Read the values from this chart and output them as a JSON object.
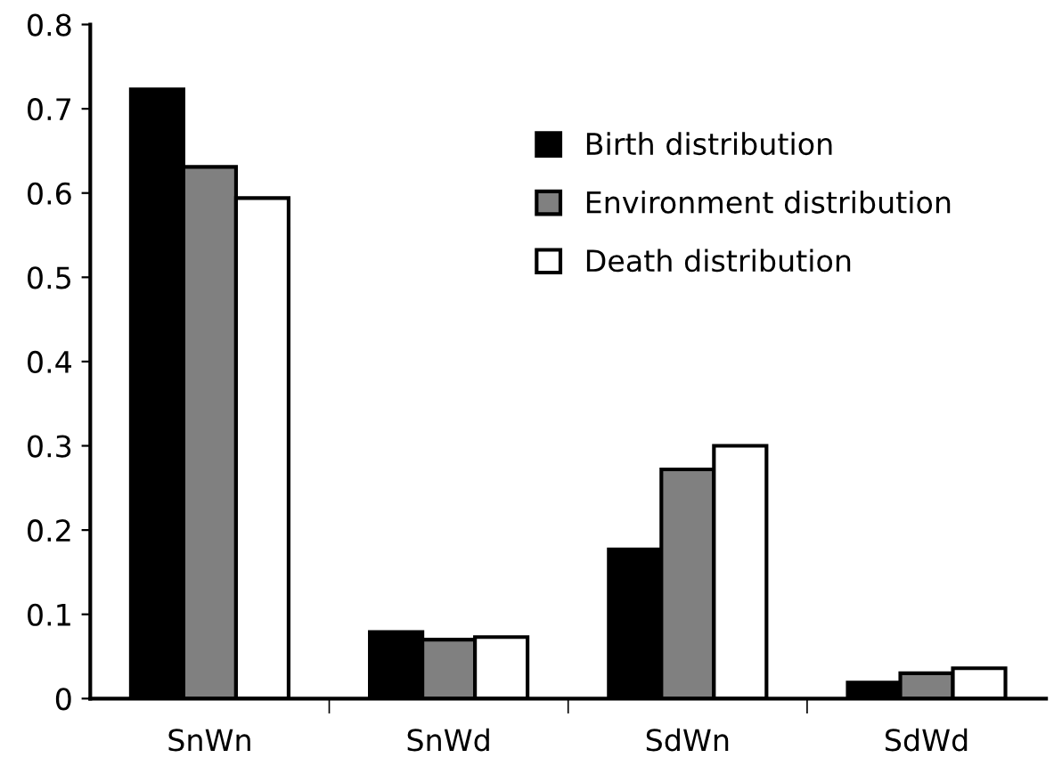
{
  "chart_data": {
    "type": "bar",
    "categories": [
      "SnWn",
      "SnWd",
      "SdWn",
      "SdWd"
    ],
    "series": [
      {
        "name": "Birth distribution",
        "color": "#000000",
        "values": [
          0.723,
          0.079,
          0.177,
          0.019
        ]
      },
      {
        "name": "Environment distribution",
        "color": "#808080",
        "values": [
          0.631,
          0.07,
          0.272,
          0.03
        ]
      },
      {
        "name": "Death distribution",
        "color": "#ffffff",
        "values": [
          0.594,
          0.073,
          0.3,
          0.036
        ]
      }
    ],
    "ylim": [
      0,
      0.8
    ],
    "yticks": [
      0,
      0.1,
      0.2,
      0.3,
      0.4,
      0.5,
      0.6,
      0.7,
      0.8
    ],
    "grid": false,
    "legend": "top right"
  }
}
